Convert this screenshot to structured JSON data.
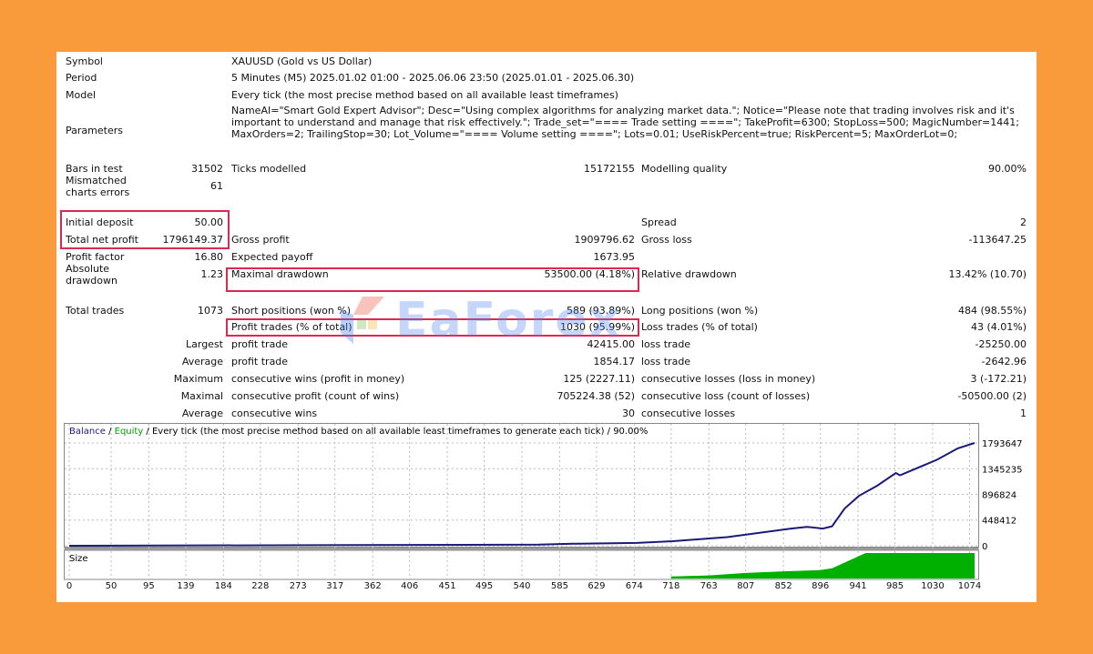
{
  "header_rows": [
    {
      "label": "Symbol",
      "text": "XAUUSD (Gold vs US Dollar)"
    },
    {
      "label": "Period",
      "text": "5 Minutes (M5) 2025.01.02 01:00 - 2025.06.06 23:50 (2025.01.01 - 2025.06.30)"
    },
    {
      "label": "Model",
      "text": "Every tick (the most precise method based on all available least timeframes)"
    },
    {
      "label": "Parameters",
      "text": "NameAI=\"Smart Gold Expert Advisor\"; Desc=\"Using complex algorithms for analyzing market data.\"; Notice=\"Please note that trading involves risk and it's important to understand and manage that risk effectively.\"; Trade_set=\"==== Trade setting ====\"; TakeProfit=6300; StopLoss=500; MagicNumber=1441; MaxOrders=2; TrailingStop=30; Lot_Volume=\"==== Volume setting ====\"; Lots=0.01; UseRiskPercent=true; RiskPercent=5; MaxOrderLot=0;"
    }
  ],
  "stat_rows": [
    {
      "l1": "Bars in test",
      "v1": "31502",
      "l2": "Ticks modelled",
      "v2": "15172155",
      "l3": "Modelling quality",
      "v3": "90.00%"
    },
    {
      "l1": "Mismatched charts errors",
      "v1": "61",
      "l2": "",
      "v2": "",
      "l3": "",
      "v3": ""
    },
    {
      "l1": "Initial deposit",
      "v1": "50.00",
      "l2": "",
      "v2": "",
      "l3": "Spread",
      "v3": "2"
    },
    {
      "l1": "Total net profit",
      "v1": "1796149.37",
      "l2": "Gross profit",
      "v2": "1909796.62",
      "l3": "Gross loss",
      "v3": "-113647.25"
    },
    {
      "l1": "Profit factor",
      "v1": "16.80",
      "l2": "Expected payoff",
      "v2": "1673.95",
      "l3": "",
      "v3": ""
    },
    {
      "l1": "Absolute drawdown",
      "v1": "1.23",
      "l2": "Maximal drawdown",
      "v2": "53500.00 (4.18%)",
      "l3": "Relative drawdown",
      "v3": "13.42% (10.70)"
    },
    {
      "l1": "Total trades",
      "v1": "1073",
      "l2": "Short positions (won %)",
      "v2": "589 (93.89%)",
      "l3": "Long positions (won %)",
      "v3": "484 (98.55%)"
    },
    {
      "l1": "",
      "v1": "",
      "l2": "Profit trades (% of total)",
      "v2": "1030 (95.99%)",
      "l3": "Loss trades (% of total)",
      "v3": "43 (4.01%)"
    },
    {
      "l1": "",
      "v1": "Largest",
      "l2": "profit trade",
      "v2": "42415.00",
      "l3": "loss trade",
      "v3": "-25250.00"
    },
    {
      "l1": "",
      "v1": "Average",
      "l2": "profit trade",
      "v2": "1854.17",
      "l3": "loss trade",
      "v3": "-2642.96"
    },
    {
      "l1": "",
      "v1": "Maximum",
      "l2": "consecutive wins (profit in money)",
      "v2": "125 (2227.11)",
      "l3": "consecutive losses (loss in money)",
      "v3": "3 (-172.21)"
    },
    {
      "l1": "",
      "v1": "Maximal",
      "l2": "consecutive profit (count of wins)",
      "v2": "705224.38 (52)",
      "l3": "consecutive loss (count of losses)",
      "v3": "-50500.00 (2)"
    },
    {
      "l1": "",
      "v1": "Average",
      "l2": "consecutive wins",
      "v2": "30",
      "l3": "consecutive losses",
      "v3": "1"
    }
  ],
  "watermark": "EaForex",
  "colors": {
    "background": "#F99B3A",
    "highlight": "#E0274D",
    "balance": "#1a1a7a",
    "equity": "#00a000",
    "size": "#00b000"
  },
  "chart_data": {
    "type": "line",
    "legend": {
      "balance": "Balance",
      "sep1": " / ",
      "equity": "Equity",
      "rest": " / Every tick (the most precise method based on all available least timeframes to generate each tick) / 90.00%"
    },
    "size_label": "Size",
    "x_ticks": [
      "0",
      "50",
      "95",
      "139",
      "184",
      "228",
      "273",
      "317",
      "362",
      "406",
      "451",
      "495",
      "540",
      "585",
      "629",
      "674",
      "718",
      "763",
      "807",
      "852",
      "896",
      "941",
      "985",
      "1030",
      "1074"
    ],
    "y_ticks": [
      "0",
      "448412",
      "896824",
      "1345235",
      "1793647"
    ],
    "ylim": [
      0,
      1793647
    ],
    "xlim": [
      0,
      1080
    ],
    "balance": [
      [
        0,
        50
      ],
      [
        560,
        20000
      ],
      [
        600,
        35000
      ],
      [
        677,
        50000
      ],
      [
        720,
        80000
      ],
      [
        785,
        150000
      ],
      [
        861,
        300000
      ],
      [
        880,
        330000
      ],
      [
        899,
        300000
      ],
      [
        910,
        340000
      ],
      [
        925,
        650000
      ],
      [
        942,
        870000
      ],
      [
        964,
        1050000
      ],
      [
        986,
        1270000
      ],
      [
        991,
        1230000
      ],
      [
        1035,
        1500000
      ],
      [
        1060,
        1700000
      ],
      [
        1080,
        1793647
      ]
    ],
    "size": [
      [
        718,
        0.08
      ],
      [
        763,
        0.12
      ],
      [
        807,
        0.22
      ],
      [
        852,
        0.28
      ],
      [
        896,
        0.33
      ],
      [
        910,
        0.4
      ],
      [
        930,
        0.7
      ],
      [
        950,
        1.0
      ],
      [
        1080,
        1.0
      ]
    ]
  }
}
